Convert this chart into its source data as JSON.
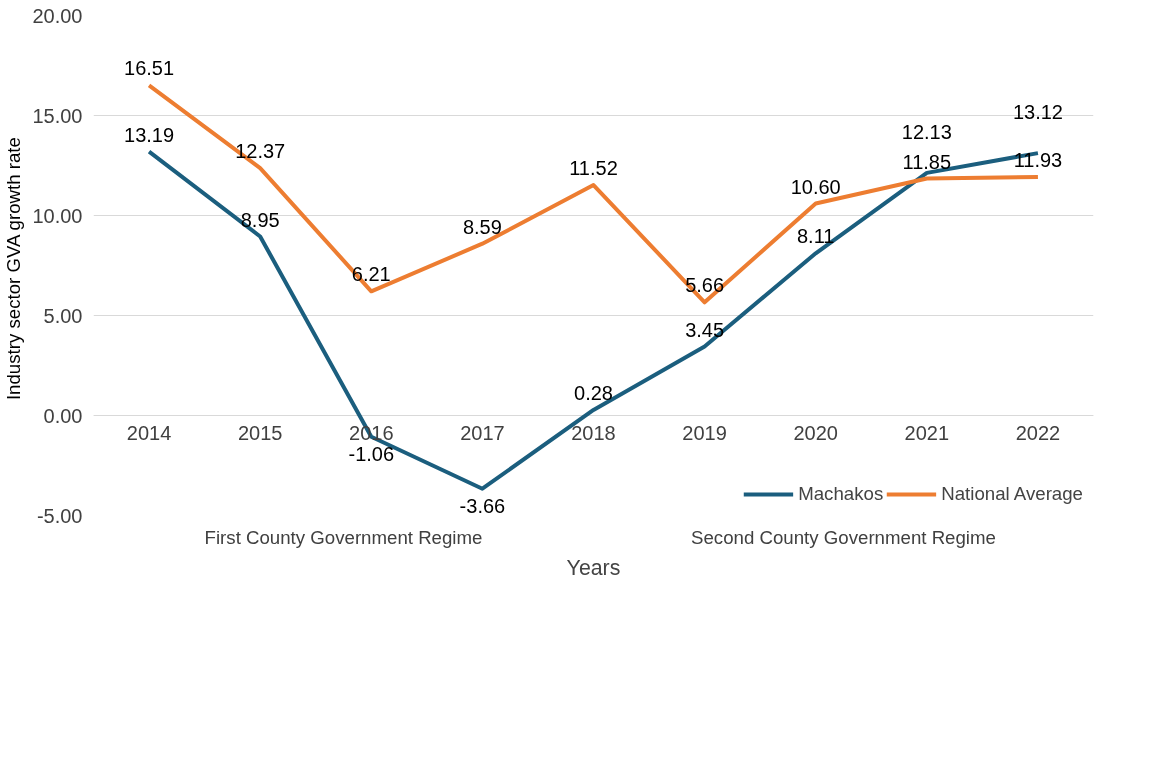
{
  "chart_data": {
    "type": "line",
    "categories": [
      "2014",
      "2015",
      "2016",
      "2017",
      "2018",
      "2019",
      "2020",
      "2021",
      "2022"
    ],
    "series": [
      {
        "name": "Machakos",
        "color": "#1b5e7e",
        "values": [
          13.19,
          8.95,
          -1.06,
          -3.66,
          0.28,
          3.45,
          8.11,
          12.13,
          13.12
        ],
        "value_labels": [
          "13.19",
          "8.95",
          "-1.06",
          "-3.66",
          "0.28",
          "3.45",
          "8.11",
          "12.13",
          "13.12"
        ]
      },
      {
        "name": "National Average",
        "color": "#ed7d31",
        "values": [
          16.51,
          12.37,
          6.21,
          8.59,
          11.52,
          5.66,
          10.6,
          11.85,
          11.93
        ],
        "value_labels": [
          "16.51",
          "12.37",
          "6.21",
          "8.59",
          "11.52",
          "5.66",
          "10.60",
          "11.85",
          "11.93"
        ]
      }
    ],
    "xlabel": "Years",
    "ylabel": "Industry  sector GVA growth rate",
    "ylim": [
      -5,
      20
    ],
    "yticks": [
      {
        "value": -5,
        "label": "-5.00"
      },
      {
        "value": 0,
        "label": "0.00"
      },
      {
        "value": 5,
        "label": "5.00"
      },
      {
        "value": 10,
        "label": "10.00"
      },
      {
        "value": 15,
        "label": "15.00"
      },
      {
        "value": 20,
        "label": "20.00"
      }
    ],
    "annotations": [
      "First County Government Regime",
      "Second County Government Regime"
    ],
    "grid": "y",
    "legend": "bottom right",
    "marker": "none",
    "line_style": "solid"
  }
}
